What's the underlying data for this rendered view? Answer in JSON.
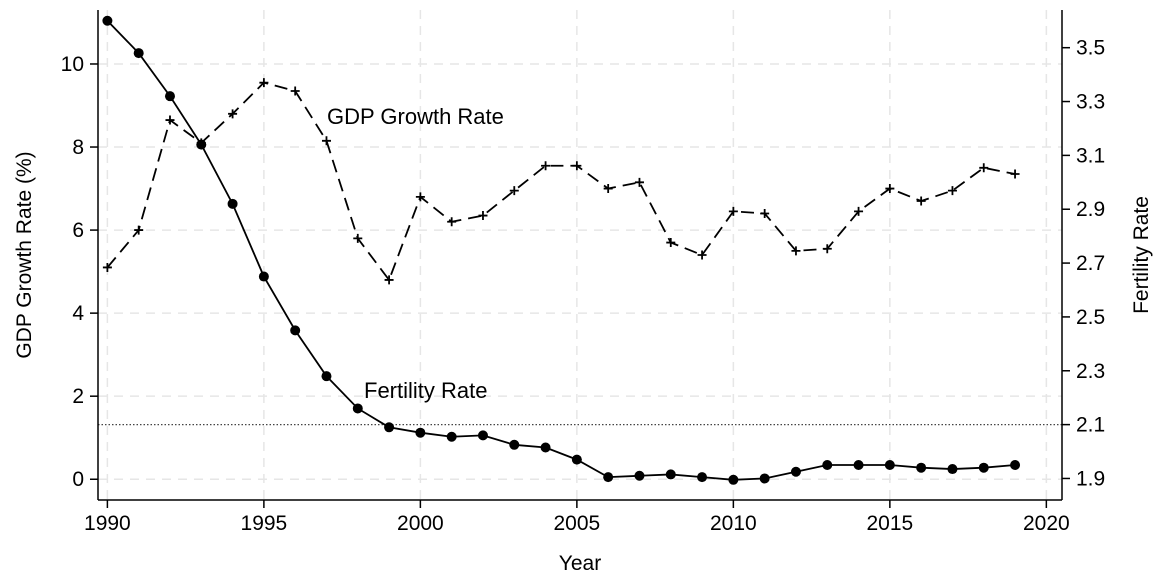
{
  "chart_data": {
    "type": "line",
    "x": [
      1990,
      1991,
      1992,
      1993,
      1994,
      1995,
      1996,
      1997,
      1998,
      1999,
      2000,
      2001,
      2002,
      2003,
      2004,
      2005,
      2006,
      2007,
      2008,
      2009,
      2010,
      2011,
      2012,
      2013,
      2014,
      2015,
      2016,
      2017,
      2018,
      2019
    ],
    "series": [
      {
        "name": "GDP Growth Rate",
        "axis": "left",
        "style": "dashed",
        "marker": "plus",
        "values": [
          5.1,
          6.0,
          8.65,
          8.1,
          8.8,
          9.55,
          9.35,
          8.15,
          5.8,
          4.8,
          6.8,
          6.2,
          6.35,
          6.95,
          7.55,
          7.55,
          7.0,
          7.15,
          5.7,
          5.4,
          6.45,
          6.4,
          5.5,
          5.55,
          6.45,
          7.0,
          6.7,
          6.95,
          7.5,
          7.35
        ]
      },
      {
        "name": "Fertility Rate",
        "axis": "right",
        "style": "solid",
        "marker": "circle",
        "values": [
          3.6,
          3.48,
          3.32,
          3.14,
          2.92,
          2.65,
          2.45,
          2.28,
          2.16,
          2.09,
          2.07,
          2.055,
          2.06,
          2.025,
          2.015,
          1.97,
          1.905,
          1.91,
          1.915,
          1.905,
          1.895,
          1.9,
          1.925,
          1.95,
          1.95,
          1.95,
          1.94,
          1.935,
          1.94,
          1.95
        ]
      }
    ],
    "reference_line": {
      "axis": "right",
      "value": 2.1,
      "style": "dotted"
    },
    "xlabel": "Year",
    "ylabel": "GDP Growth Rate (%)",
    "y2label": "Fertility Rate",
    "xlim": [
      1989.7,
      2020.5
    ],
    "ylim": [
      -0.5,
      11.3
    ],
    "y2lim": [
      1.82,
      3.64
    ],
    "xticks": [
      1990,
      1995,
      2000,
      2005,
      2010,
      2015,
      2020
    ],
    "yticks": [
      0,
      2,
      4,
      6,
      8,
      10
    ],
    "y2ticks": [
      1.9,
      2.1,
      2.3,
      2.5,
      2.7,
      2.9,
      3.1,
      3.3,
      3.5
    ],
    "y2tick_labels": [
      "1.9",
      "2.1",
      "2.3",
      "2.5",
      "2.7",
      "2.9",
      "3.1",
      "3.3",
      "3.5"
    ],
    "grid": true,
    "legend": "none"
  }
}
